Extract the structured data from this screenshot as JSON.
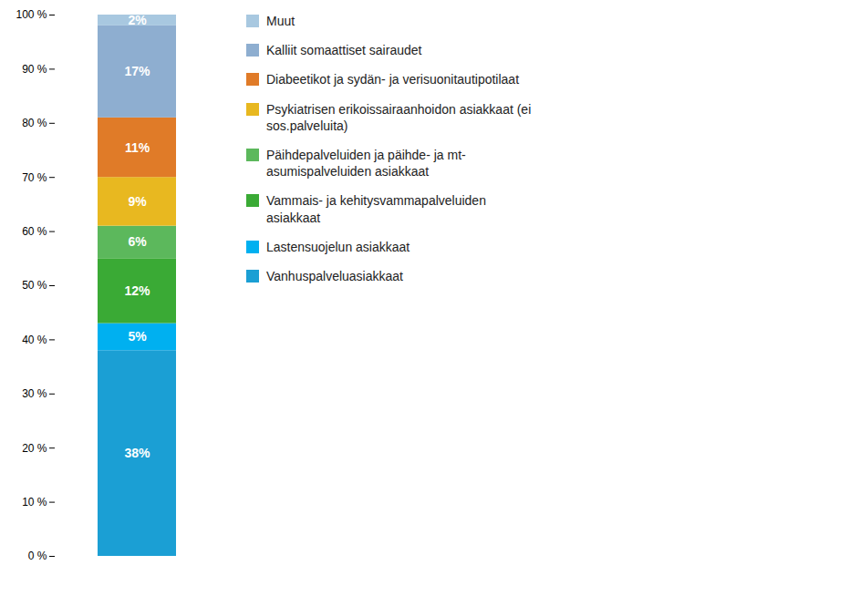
{
  "chart_data": {
    "type": "bar",
    "stacked": true,
    "categories": [
      null
    ],
    "series": [
      {
        "name": "Vanhuspalveluasiakkaat",
        "color": "#1B9FD4",
        "values": [
          38
        ],
        "value_labels": [
          "38%"
        ]
      },
      {
        "name": "Lastensuojelun asiakkaat",
        "color": "#00B0F0",
        "values": [
          5
        ],
        "value_labels": [
          "5%"
        ]
      },
      {
        "name": "Vammais- ja kehitysvammapalveluiden\nasiakkaat",
        "color": "#3AAA35",
        "values": [
          12
        ],
        "value_labels": [
          "12%"
        ]
      },
      {
        "name": "Päihdepalveluiden ja päihde- ja mt-\nasumispalveluiden asiakkaat",
        "color": "#5CB85C",
        "values": [
          6
        ],
        "value_labels": [
          "6%"
        ]
      },
      {
        "name": "Psykiatrisen erikoissairaanhoidon asiakkaat (ei\nsos.palveluita)",
        "color": "#E8B820",
        "values": [
          9
        ],
        "value_labels": [
          "9%"
        ]
      },
      {
        "name": "Diabeetikot ja sydän- ja verisuonitautipotilaat",
        "color": "#E07B28",
        "values": [
          11
        ],
        "value_labels": [
          "11%"
        ]
      },
      {
        "name": "Kalliit somaattiset sairaudet",
        "color": "#8EAED0",
        "values": [
          17
        ],
        "value_labels": [
          "17%"
        ]
      },
      {
        "name": "Muut",
        "color": "#A8C8E0",
        "values": [
          2
        ],
        "value_labels": [
          "2%"
        ]
      }
    ],
    "ylim": [
      0,
      100
    ],
    "yticks": [
      {
        "value": 0,
        "label": "0 %"
      },
      {
        "value": 10,
        "label": "10 %"
      },
      {
        "value": 20,
        "label": "20 %"
      },
      {
        "value": 30,
        "label": "30 %"
      },
      {
        "value": 40,
        "label": "40 %"
      },
      {
        "value": 50,
        "label": "50 %"
      },
      {
        "value": 60,
        "label": "60 %"
      },
      {
        "value": 70,
        "label": "70 %"
      },
      {
        "value": 80,
        "label": "80 %"
      },
      {
        "value": 90,
        "label": "90 %"
      },
      {
        "value": 100,
        "label": "100 %"
      }
    ],
    "grid": false,
    "legend": "right",
    "data_labels": true,
    "tick_labels": "y"
  }
}
